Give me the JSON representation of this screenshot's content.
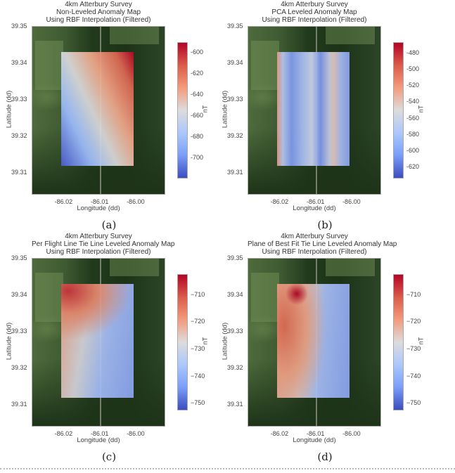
{
  "panels": [
    {
      "id": "a",
      "title": [
        "4km Atterbury Survey",
        "Non-Leveled Anomaly Map",
        "Using RBF Interpolation (Filtered)"
      ],
      "caption": "(a)",
      "colorbar": {
        "label": "nT",
        "range": [
          -718.5,
          -590.7
        ],
        "ticks": [
          "-600",
          "-620",
          "-640",
          "-660",
          "-680",
          "-700"
        ]
      }
    },
    {
      "id": "b",
      "title": [
        "4km Atterbury Survey",
        "PCA Leveled Anomaly Map",
        "Using RBF Interpolation (Filtered)"
      ],
      "caption": "(b)",
      "colorbar": {
        "label": "nT",
        "range": [
          -633,
          -467
        ],
        "ticks": [
          "-480",
          "-500",
          "-520",
          "-540",
          "-560",
          "-580",
          "-600",
          "-620"
        ]
      }
    },
    {
      "id": "c",
      "title": [
        "4km Atterbury Survey",
        "Per Flight Line Tie Line Leveled Anomaly Map",
        "Using RBF Interpolation (Filtered)"
      ],
      "caption": "(c)",
      "colorbar": {
        "label": "nT",
        "range": [
          -752.3,
          -702.5
        ],
        "ticks": [
          "−710",
          "−720",
          "−730",
          "−740",
          "−750"
        ]
      }
    },
    {
      "id": "d",
      "title": [
        "4km Atterbury Survey",
        "Plane of Best Fit Tie Line Leveled Anomaly Map",
        "Using RBF Interpolation (Filtered)"
      ],
      "caption": "(d)",
      "colorbar": {
        "label": "nT",
        "range": [
          -752.3,
          -702.5
        ],
        "ticks": [
          "−710",
          "−720",
          "−730",
          "−740",
          "−750"
        ]
      }
    }
  ],
  "axes": {
    "xlabel": "Longitude (dd)",
    "ylabel": "Latitude (dd)",
    "xlim": [
      -86.0291,
      -85.9924
    ],
    "ylim": [
      39.3043,
      39.35
    ],
    "xticks": [
      "-86.02",
      "-86.01",
      "-86.00"
    ],
    "yticks": [
      "39.35",
      "39.34",
      "39.33",
      "39.32",
      "39.31"
    ],
    "anomaly_extent": {
      "lon": [
        -86.021,
        -86.001
      ],
      "lat": [
        39.3119,
        39.343
      ]
    }
  }
}
